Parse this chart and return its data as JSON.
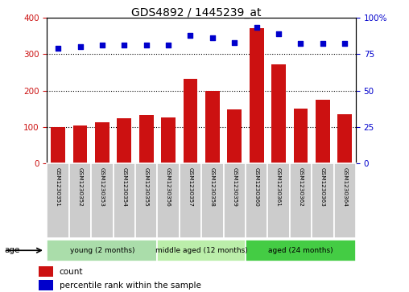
{
  "title": "GDS4892 / 1445239_at",
  "samples": [
    "GSM1230351",
    "GSM1230352",
    "GSM1230353",
    "GSM1230354",
    "GSM1230355",
    "GSM1230356",
    "GSM1230357",
    "GSM1230358",
    "GSM1230359",
    "GSM1230360",
    "GSM1230361",
    "GSM1230362",
    "GSM1230363",
    "GSM1230364"
  ],
  "counts": [
    100,
    105,
    113,
    125,
    132,
    127,
    232,
    198,
    148,
    370,
    272,
    150,
    175,
    135
  ],
  "percentiles": [
    79,
    80,
    81,
    81,
    81,
    81,
    88,
    86,
    83,
    93,
    89,
    82,
    82,
    82
  ],
  "groups": [
    {
      "label": "young (2 months)",
      "start": 0,
      "end": 5,
      "color": "#aaddaa"
    },
    {
      "label": "middle aged (12 months)",
      "start": 5,
      "end": 9,
      "color": "#bbeeaa"
    },
    {
      "label": "aged (24 months)",
      "start": 9,
      "end": 14,
      "color": "#44cc44"
    }
  ],
  "ylim_left": [
    0,
    400
  ],
  "ylim_right": [
    0,
    100
  ],
  "yticks_left": [
    0,
    100,
    200,
    300,
    400
  ],
  "yticks_right": [
    0,
    25,
    50,
    75,
    100
  ],
  "bar_color": "#CC1111",
  "dot_color": "#0000CC",
  "bg_color": "#FFFFFF",
  "label_bg": "#CCCCCC",
  "age_label": "age",
  "legend_count": "count",
  "legend_pct": "percentile rank within the sample",
  "fig_width": 5.08,
  "fig_height": 3.63,
  "dpi": 100
}
